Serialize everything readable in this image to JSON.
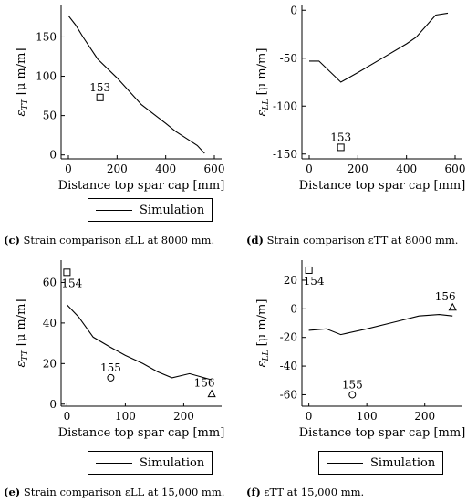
{
  "chart_data": [
    {
      "id": "a",
      "type": "line",
      "xlabel": "Distance top spar cap [mm]",
      "ylabel": "εTT [μ m/m]",
      "ylabel_sub": "TT",
      "xlim": [
        -30,
        630
      ],
      "ylim": [
        -5,
        190
      ],
      "xticks": [
        0,
        200,
        400,
        600
      ],
      "yticks": [
        0,
        50,
        100,
        150
      ],
      "series": [
        {
          "type": "line",
          "x": [
            0,
            30,
            60,
            120,
            200,
            300,
            400,
            440,
            500,
            530,
            560
          ],
          "y": [
            177,
            165,
            150,
            122,
            98,
            64,
            40,
            30,
            18,
            12,
            2
          ]
        }
      ],
      "points": [
        {
          "x": 130,
          "y": 73,
          "marker": "square",
          "label": "153"
        }
      ]
    },
    {
      "id": "b",
      "type": "line",
      "xlabel": "Distance top spar cap [mm]",
      "ylabel": "εLL [μ m/m]",
      "ylabel_sub": "LL",
      "xlim": [
        -30,
        630
      ],
      "ylim": [
        -155,
        5
      ],
      "xticks": [
        0,
        200,
        400,
        600
      ],
      "yticks": [
        0,
        -50,
        -100,
        -150
      ],
      "series": [
        {
          "type": "line",
          "x": [
            0,
            40,
            130,
            200,
            300,
            400,
            440,
            520,
            570
          ],
          "y": [
            -53,
            -53,
            -75,
            -65,
            -50,
            -35,
            -28,
            -5,
            -3
          ]
        }
      ],
      "points": [
        {
          "x": 130,
          "y": -143,
          "marker": "square",
          "label": "153"
        }
      ]
    },
    {
      "id": "c",
      "type": "line",
      "xlabel": "Distance top spar cap [mm]",
      "ylabel": "εTT [μ m/m]",
      "ylabel_sub": "TT",
      "xlim": [
        -10,
        265
      ],
      "ylim": [
        -1,
        71
      ],
      "xticks": [
        0,
        100,
        200
      ],
      "yticks": [
        0,
        20,
        40,
        60
      ],
      "series": [
        {
          "type": "line",
          "x": [
            0,
            20,
            45,
            75,
            100,
            130,
            155,
            180,
            210,
            248
          ],
          "y": [
            49,
            43,
            33,
            28,
            24,
            20,
            16,
            13,
            15,
            12
          ]
        }
      ],
      "points": [
        {
          "x": 0,
          "y": 65,
          "marker": "square",
          "label": "154"
        },
        {
          "x": 75,
          "y": 13,
          "marker": "circle",
          "label": "155"
        },
        {
          "x": 248,
          "y": 5,
          "marker": "triangle",
          "label": "156"
        }
      ]
    },
    {
      "id": "d",
      "type": "line",
      "xlabel": "Distance top spar cap [mm]",
      "ylabel": "εLL [μ m/m]",
      "ylabel_sub": "LL",
      "xlim": [
        -12,
        265
      ],
      "ylim": [
        -68,
        34
      ],
      "xticks": [
        0,
        100,
        200
      ],
      "yticks": [
        20,
        0,
        -20,
        -40,
        -60
      ],
      "series": [
        {
          "type": "line",
          "x": [
            0,
            30,
            55,
            100,
            150,
            190,
            225,
            248
          ],
          "y": [
            -15,
            -14,
            -18,
            -14,
            -9,
            -5,
            -4,
            -5
          ]
        }
      ],
      "points": [
        {
          "x": 0,
          "y": 27,
          "marker": "square",
          "label": "154"
        },
        {
          "x": 75,
          "y": -60,
          "marker": "circle",
          "label": "155"
        },
        {
          "x": 248,
          "y": 1,
          "marker": "triangle",
          "label": "156"
        }
      ]
    }
  ],
  "legends": [
    {
      "label": "Simulation"
    },
    {
      "label": "Simulation"
    }
  ],
  "captions": [
    {
      "tag": "(c)",
      "text": "Strain comparison εLL at 8000 mm."
    },
    {
      "tag": "(d)",
      "text": "Strain comparison εTT at 8000 mm."
    },
    {
      "tag": "(e)",
      "text": "Strain comparison εLL at 15,000 mm."
    },
    {
      "tag": "(f)",
      "text": "εTT at 15,000 mm."
    }
  ]
}
